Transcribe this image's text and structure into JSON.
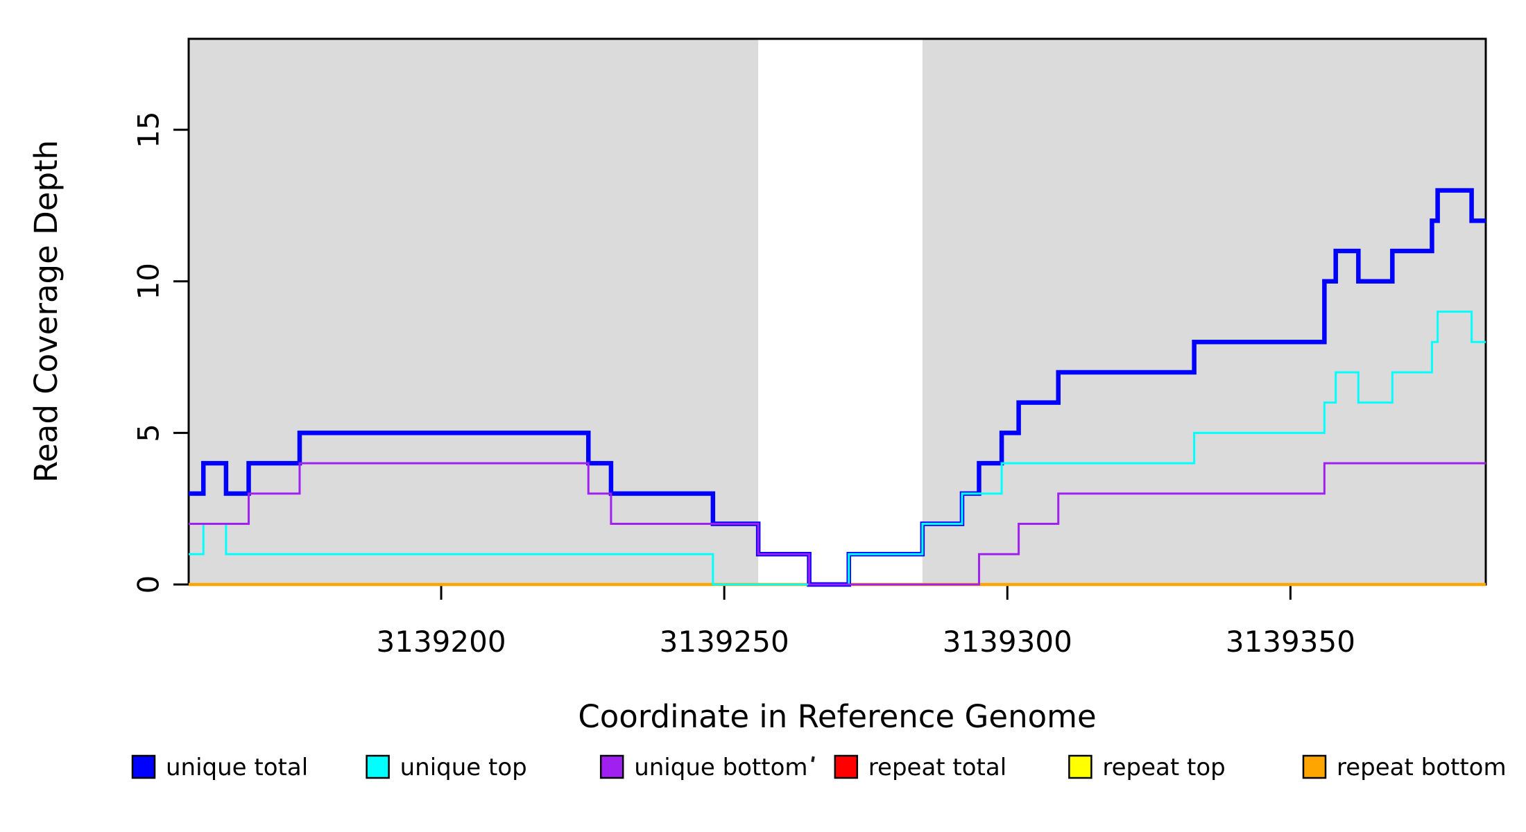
{
  "chart_data": {
    "type": "line",
    "subtype": "step-coverage",
    "title": "",
    "xlabel": "Coordinate in Reference Genome",
    "ylabel": "Read Coverage Depth",
    "xlim": [
      3139155.4,
      3139384.5
    ],
    "ylim": [
      0,
      18
    ],
    "grid": false,
    "x_ticks": [
      {
        "value": 3139200,
        "label": "3139200"
      },
      {
        "value": 3139250,
        "label": "3139250"
      },
      {
        "value": 3139300,
        "label": "3139300"
      },
      {
        "value": 3139350,
        "label": "3139350"
      }
    ],
    "y_ticks": [
      {
        "value": 0,
        "label": "0"
      },
      {
        "value": 5,
        "label": "5"
      },
      {
        "value": 10,
        "label": "10"
      },
      {
        "value": 15,
        "label": "15"
      }
    ],
    "background_regions": [
      {
        "name": "unique-region-left",
        "x0": 3139155.4,
        "x1": 3139256,
        "color": "#DBDBDB"
      },
      {
        "name": "unique-region-right",
        "x0": 3139285,
        "x1": 3139384.5,
        "color": "#DBDBDB"
      }
    ],
    "repeat_gap_region": {
      "x0": 3139256,
      "x1": 3139285,
      "color": "#FFFFFF"
    },
    "series": [
      {
        "name": "repeat total",
        "color": "#FF0000",
        "lw": 3,
        "steps": [
          [
            3139155.4,
            0
          ]
        ]
      },
      {
        "name": "repeat top",
        "color": "#FFFF00",
        "lw": 3,
        "steps": [
          [
            3139155.4,
            0
          ]
        ]
      },
      {
        "name": "repeat bottom",
        "color": "#FFA500",
        "lw": 4.5,
        "steps": [
          [
            3139155.4,
            0
          ]
        ]
      },
      {
        "name": "unique total",
        "color": "#0000FF",
        "lw": 6.5,
        "steps": [
          [
            3139155.4,
            3
          ],
          [
            3139158,
            4
          ],
          [
            3139162,
            3
          ],
          [
            3139166,
            4
          ],
          [
            3139175,
            5
          ],
          [
            3139226,
            4
          ],
          [
            3139230,
            3
          ],
          [
            3139248,
            2
          ],
          [
            3139256,
            1
          ],
          [
            3139265,
            0
          ],
          [
            3139272,
            1
          ],
          [
            3139285,
            2
          ],
          [
            3139292,
            3
          ],
          [
            3139295,
            4
          ],
          [
            3139299,
            5
          ],
          [
            3139302,
            6
          ],
          [
            3139309,
            7
          ],
          [
            3139333,
            8
          ],
          [
            3139356,
            10
          ],
          [
            3139358,
            11
          ],
          [
            3139362,
            10
          ],
          [
            3139368,
            11
          ],
          [
            3139375,
            12
          ],
          [
            3139376,
            13
          ],
          [
            3139382,
            12
          ]
        ]
      },
      {
        "name": "unique top",
        "color": "#00FFFF",
        "lw": 3,
        "steps": [
          [
            3139155.4,
            1
          ],
          [
            3139158,
            2
          ],
          [
            3139162,
            1
          ],
          [
            3139248,
            0
          ],
          [
            3139272,
            1
          ],
          [
            3139285,
            2
          ],
          [
            3139292,
            3
          ],
          [
            3139299,
            4
          ],
          [
            3139333,
            5
          ],
          [
            3139356,
            6
          ],
          [
            3139358,
            7
          ],
          [
            3139362,
            6
          ],
          [
            3139368,
            7
          ],
          [
            3139375,
            8
          ],
          [
            3139376,
            9
          ],
          [
            3139382,
            8
          ]
        ]
      },
      {
        "name": "unique bottom",
        "color": "#A020F0",
        "lw": 3,
        "steps": [
          [
            3139155.4,
            2
          ],
          [
            3139166,
            3
          ],
          [
            3139175,
            4
          ],
          [
            3139226,
            3
          ],
          [
            3139230,
            2
          ],
          [
            3139256,
            1
          ],
          [
            3139265,
            0
          ],
          [
            3139295,
            1
          ],
          [
            3139302,
            2
          ],
          [
            3139309,
            3
          ],
          [
            3139356,
            4
          ]
        ]
      }
    ],
    "legend": {
      "position": "bottom",
      "entries": [
        {
          "label": "unique total",
          "color": "#0000FF"
        },
        {
          "label": "unique top",
          "color": "#00FFFF"
        },
        {
          "label": "unique bottom",
          "color": "#A020F0"
        },
        {
          "label": "repeat total",
          "color": "#FF0000"
        },
        {
          "label": "repeat top",
          "color": "#FFFF00"
        },
        {
          "label": "repeat bottom",
          "color": "#FFA500"
        }
      ]
    }
  }
}
